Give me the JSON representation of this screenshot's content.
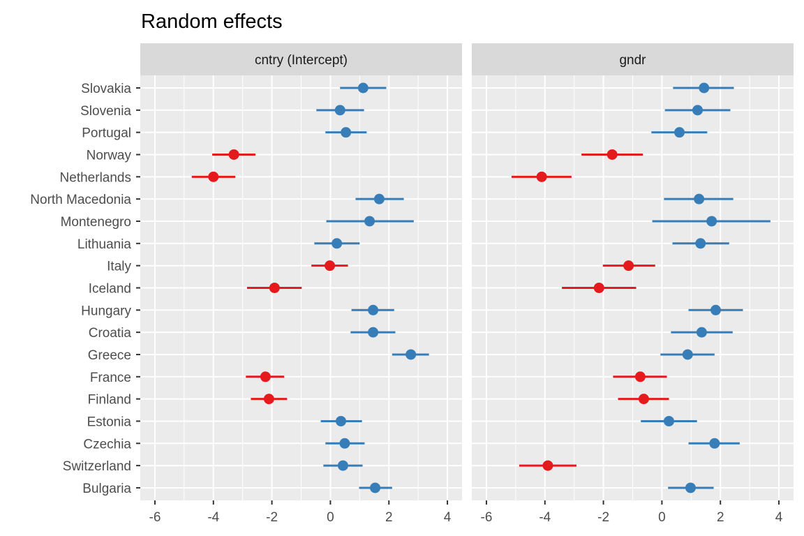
{
  "chart_data": {
    "type": "scatter",
    "subtype": "forest-plot (point + interval), faceted",
    "title": "Random effects",
    "xlabel": "",
    "ylabel": "",
    "xlim": [
      -6.5,
      4.5
    ],
    "x_ticks": [
      -6,
      -4,
      -2,
      0,
      2,
      4
    ],
    "x_tick_labels": [
      "-6",
      "-4",
      "-2",
      "0",
      "2",
      "4"
    ],
    "grid": true,
    "legend": "none",
    "colors": {
      "positive": "#377EB8",
      "negative": "#E41A1C",
      "panel_bg": "#EBEBEB",
      "strip_bg": "#D9D9D9",
      "grid": "#FFFFFF"
    },
    "categories": [
      "Slovakia",
      "Slovenia",
      "Portugal",
      "Norway",
      "Netherlands",
      "North Macedonia",
      "Montenegro",
      "Lithuania",
      "Italy",
      "Iceland",
      "Hungary",
      "Croatia",
      "Greece",
      "France",
      "Finland",
      "Estonia",
      "Czechia",
      "Switzerland",
      "Bulgaria"
    ],
    "facets": [
      {
        "name": "cntry (Intercept)",
        "estimate": [
          1.12,
          0.33,
          0.53,
          -3.3,
          -4.0,
          1.67,
          1.34,
          0.22,
          -0.02,
          -1.91,
          1.46,
          1.46,
          2.75,
          -2.22,
          -2.1,
          0.36,
          0.49,
          0.43,
          1.53
        ],
        "lower": [
          0.33,
          -0.48,
          -0.17,
          -4.04,
          -4.74,
          0.86,
          -0.14,
          -0.55,
          -0.65,
          -2.85,
          0.72,
          0.69,
          2.11,
          -2.89,
          -2.72,
          -0.33,
          -0.17,
          -0.24,
          0.98
        ],
        "upper": [
          1.91,
          1.15,
          1.24,
          -2.56,
          -3.25,
          2.51,
          2.85,
          1.0,
          0.6,
          -0.98,
          2.18,
          2.22,
          3.37,
          -1.58,
          -1.48,
          1.08,
          1.17,
          1.1,
          2.11
        ]
      },
      {
        "name": "gndr",
        "estimate": [
          1.44,
          1.22,
          0.6,
          -1.7,
          -4.11,
          1.27,
          1.7,
          1.32,
          -1.14,
          -2.15,
          1.84,
          1.36,
          0.88,
          -0.74,
          -0.62,
          0.24,
          1.8,
          -3.9,
          0.98
        ],
        "lower": [
          0.38,
          0.1,
          -0.36,
          -2.75,
          -5.14,
          0.07,
          -0.33,
          0.36,
          -2.02,
          -3.42,
          0.91,
          0.31,
          -0.05,
          -1.67,
          -1.5,
          -0.72,
          0.91,
          -4.88,
          0.21
        ],
        "upper": [
          2.46,
          2.34,
          1.55,
          -0.65,
          -3.09,
          2.44,
          3.71,
          2.3,
          -0.23,
          -0.88,
          2.77,
          2.42,
          1.8,
          0.17,
          0.24,
          1.2,
          2.66,
          -2.92,
          1.77
        ]
      }
    ]
  }
}
